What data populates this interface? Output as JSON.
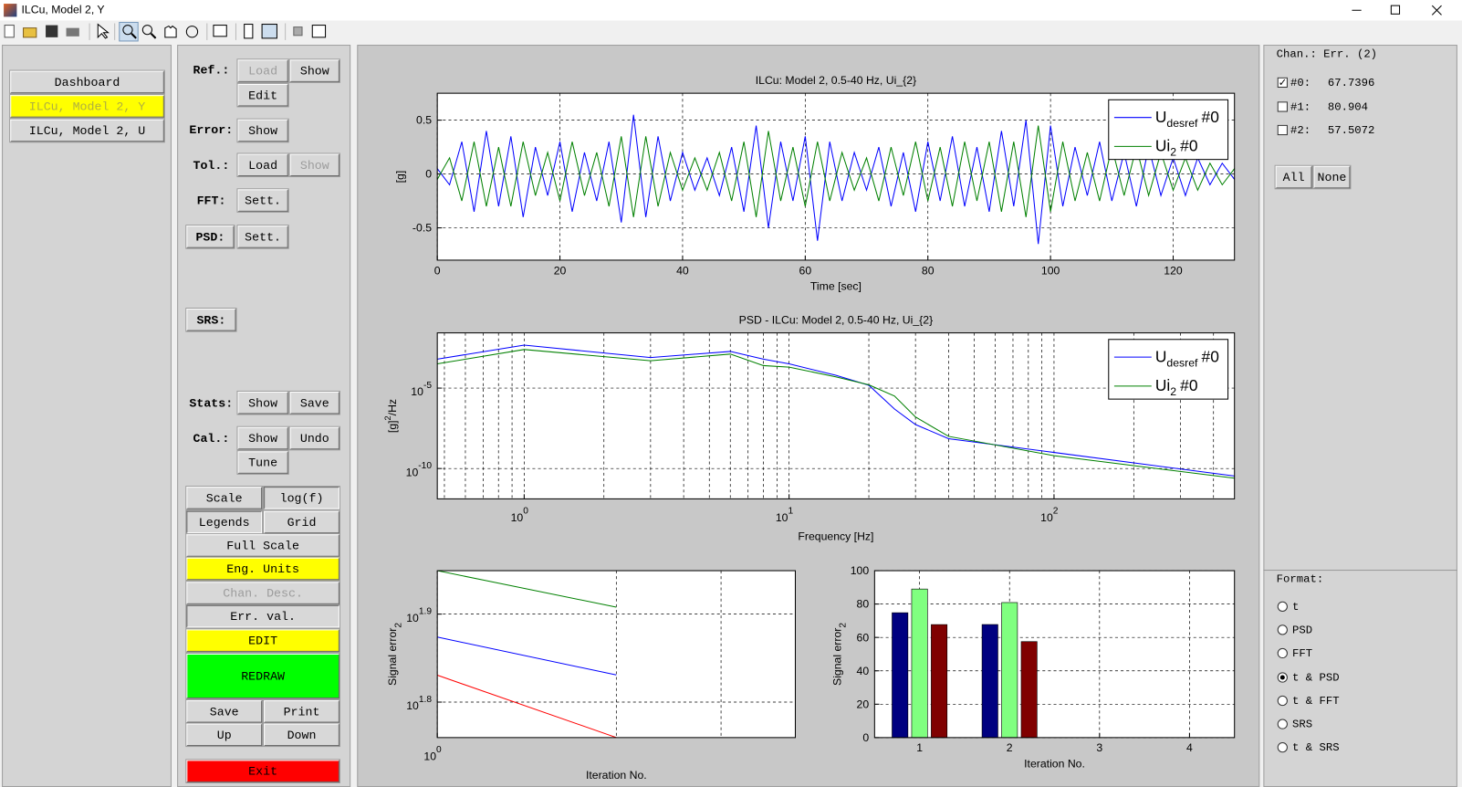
{
  "window": {
    "title": "ILCu, Model 2, Y"
  },
  "nav": [
    "Dashboard",
    "ILCu, Model 2, Y",
    "ILCu, Model 2, U"
  ],
  "controls": [
    {
      "label": "Ref.:",
      "buttons": [
        "Load",
        "Show",
        "Edit"
      ]
    },
    {
      "label": "Error:",
      "buttons": [
        "Show"
      ]
    },
    {
      "label": "Tol.:",
      "buttons": [
        "Load",
        "Show"
      ]
    },
    {
      "label": "FFT:",
      "buttons": [
        "Sett."
      ]
    },
    {
      "label": "PSD:",
      "buttons": [
        "Sett."
      ]
    },
    {
      "label": "SRS:"
    },
    {
      "label": "Stats:",
      "buttons": [
        "Show",
        "Save"
      ]
    },
    {
      "label": "Cal.:",
      "buttons": [
        "Show",
        "Undo",
        "Tune"
      ]
    }
  ],
  "options": [
    "Scale",
    "log(f)",
    "Legends",
    "Grid",
    "Full Scale",
    "Eng. Units",
    "Chan. Desc.",
    "Err. val.",
    "EDIT",
    "REDRAW",
    "Save",
    "Print",
    "Up",
    "Down",
    "Exit"
  ],
  "right_panel": {
    "header": "Chan.: Err. (2)",
    "channels": [
      {
        "label": "#0:",
        "error": 67.7396,
        "checked": true
      },
      {
        "label": "#1:",
        "error": 80.904,
        "checked": false
      },
      {
        "label": "#2:",
        "error": 57.5072,
        "checked": false
      }
    ],
    "buttons": [
      "All",
      "None"
    ],
    "format_label": "Format:",
    "formats": [
      "t",
      "PSD",
      "FFT",
      "t & PSD",
      "t & FFT",
      "SRS",
      "t & SRS"
    ],
    "selected_format": 3
  },
  "chart_data": [
    {
      "type": "line",
      "title": "ILCu: Model 2, 0.5-40 Hz, Ui_{2}",
      "xlabel": "Time [sec]",
      "ylabel": "[g]",
      "x": [
        0,
        2,
        4,
        6,
        8,
        10,
        12,
        14,
        16,
        18,
        20,
        22,
        24,
        26,
        28,
        30,
        32,
        34,
        36,
        38,
        40,
        42,
        44,
        46,
        48,
        50,
        52,
        54,
        56,
        58,
        60,
        62,
        64,
        66,
        68,
        70,
        72,
        74,
        76,
        78,
        80,
        82,
        84,
        86,
        88,
        90,
        92,
        94,
        96,
        98,
        100,
        102,
        104,
        106,
        108,
        110,
        112,
        114,
        116,
        118,
        120,
        122,
        124,
        126,
        128,
        130
      ],
      "series": [
        {
          "name": "U",
          "name_sub": "desref",
          "name_suffix": "#0",
          "color": "#0000ff",
          "values": [
            0.05,
            -0.1,
            0.3,
            -0.35,
            0.4,
            -0.3,
            0.35,
            -0.4,
            0.25,
            -0.2,
            0.3,
            -0.35,
            0.2,
            -0.25,
            0.3,
            -0.45,
            0.55,
            -0.4,
            0.35,
            -0.25,
            0.2,
            -0.15,
            0.15,
            -0.2,
            0.25,
            -0.35,
            0.45,
            -0.5,
            0.3,
            -0.25,
            0.35,
            -0.62,
            0.3,
            -0.25,
            0.2,
            -0.15,
            0.25,
            -0.3,
            0.2,
            -0.35,
            0.3,
            -0.25,
            0.35,
            -0.3,
            0.25,
            -0.35,
            0.4,
            -0.3,
            0.5,
            -0.65,
            0.45,
            -0.3,
            0.25,
            -0.2,
            0.3,
            -0.25,
            0.2,
            -0.3,
            0.25,
            -0.2,
            0.15,
            -0.2,
            0.15,
            -0.1,
            0.1,
            -0.05
          ]
        },
        {
          "name": "Ui",
          "name_sub": "2",
          "name_suffix": "#0",
          "color": "#008000",
          "values": [
            -0.05,
            0.15,
            -0.25,
            0.3,
            -0.3,
            0.25,
            -0.3,
            0.3,
            -0.2,
            0.2,
            -0.25,
            0.3,
            -0.2,
            0.2,
            -0.3,
            0.35,
            -0.4,
            0.35,
            -0.3,
            0.2,
            -0.15,
            0.15,
            -0.15,
            0.2,
            -0.25,
            0.3,
            -0.4,
            0.4,
            -0.25,
            0.25,
            -0.3,
            0.3,
            -0.25,
            0.2,
            -0.15,
            0.15,
            -0.25,
            0.25,
            -0.2,
            0.3,
            -0.25,
            0.25,
            -0.3,
            0.3,
            -0.25,
            0.3,
            -0.35,
            0.3,
            -0.4,
            0.45,
            -0.35,
            0.3,
            -0.25,
            0.2,
            -0.25,
            0.25,
            -0.2,
            0.25,
            -0.2,
            0.2,
            -0.15,
            0.15,
            -0.15,
            0.1,
            -0.1,
            0.05
          ]
        }
      ],
      "xlim": [
        0,
        130
      ],
      "ylim": [
        -0.8,
        0.75
      ],
      "xticks": [
        0,
        20,
        40,
        60,
        80,
        100,
        120
      ],
      "yticks": [
        -0.5,
        0,
        0.5
      ],
      "grid": true,
      "legend": "upper right"
    },
    {
      "type": "line",
      "title": "PSD - ILCu: Model 2, 0.5-40 Hz, Ui_{2}",
      "xlabel": "Frequency [Hz]",
      "ylabel": "[g]",
      "ylabel_sup": "2",
      "ylabel_suffix": "/Hz",
      "xscale": "log",
      "yscale": "log",
      "x": [
        0.47,
        1,
        3,
        6,
        8,
        10,
        15,
        20,
        25,
        30,
        40,
        100,
        480
      ],
      "series": [
        {
          "name": "U",
          "name_sub": "desref",
          "name_suffix": "#0",
          "color": "#0000ff",
          "values": [
            0.00063,
            0.0047,
            0.00079,
            0.0019,
            0.00063,
            0.00032,
            6.3e-05,
            1.5e-05,
            5e-07,
            5.4e-08,
            7.2e-09,
            1e-09,
            3.4e-11
          ]
        },
        {
          "name": "Ui",
          "name_sub": "2",
          "name_suffix": "#0",
          "color": "#008000",
          "values": [
            0.00032,
            0.0025,
            0.0005,
            0.0013,
            0.00025,
            0.0002,
            5e-05,
            1.6e-05,
            3.2e-06,
            1.6e-07,
            1e-08,
            6.3e-10,
            2.5e-11
          ]
        }
      ],
      "xlim": [
        0.47,
        480
      ],
      "ylim": [
        1.3e-12,
        0.027
      ],
      "xticks": [
        {
          "value": 1,
          "label": "10",
          "sup": "0"
        },
        {
          "value": 10,
          "label": "10",
          "sup": "1"
        },
        {
          "value": 100,
          "label": "10",
          "sup": "2"
        }
      ],
      "minor_xticks": [
        0.5,
        0.6,
        0.7,
        0.8,
        0.9,
        2,
        3,
        4,
        5,
        6,
        7,
        8,
        9,
        20,
        30,
        40,
        50,
        60,
        70,
        80,
        90,
        200,
        300,
        400
      ],
      "yticks": [
        {
          "value": 1e-10,
          "label": "10",
          "sup": "-10"
        },
        {
          "value": 1e-05,
          "label": "10",
          "sup": "-5"
        }
      ],
      "grid": true,
      "legend": "upper right"
    },
    {
      "type": "line",
      "xlabel": "Iteration No.",
      "ylabel": "Signal error",
      "ylabel_sub": "2",
      "xscale": "log",
      "yscale": "log",
      "x": [
        1,
        2
      ],
      "series": [
        {
          "color": "#008000",
          "values": [
            89,
            80.9
          ]
        },
        {
          "color": "#0000ff",
          "values": [
            74.8,
            67.74
          ]
        },
        {
          "color": "#ff0000",
          "values": [
            67.7,
            57.51
          ]
        }
      ],
      "xlim": [
        1,
        4
      ],
      "ylim": [
        57.5,
        89
      ],
      "xticks": [
        {
          "value": 1,
          "label": "10",
          "sup": "0"
        }
      ],
      "minor_xticks": [
        2,
        3
      ],
      "yticks": [
        {
          "value": 63.0957,
          "label": "10",
          "sup": "1.8"
        },
        {
          "value": 79.4328,
          "label": "10",
          "sup": "1.9"
        }
      ],
      "grid": true
    },
    {
      "type": "bar",
      "xlabel": "Iteration No.",
      "ylabel": "Signal error",
      "ylabel_sub": "2",
      "x": [
        1,
        2
      ],
      "series": [
        {
          "color": "#000080",
          "values": [
            74.8,
            67.74
          ]
        },
        {
          "color": "#80ff80",
          "values": [
            89,
            80.9
          ]
        },
        {
          "color": "#800000",
          "values": [
            67.7,
            57.51
          ]
        }
      ],
      "xlim": [
        0.5,
        4.5
      ],
      "ylim": [
        0,
        100
      ],
      "xticks": [
        1,
        2,
        3,
        4
      ],
      "yticks": [
        0,
        20,
        40,
        60,
        80,
        100
      ],
      "grid": true
    }
  ]
}
